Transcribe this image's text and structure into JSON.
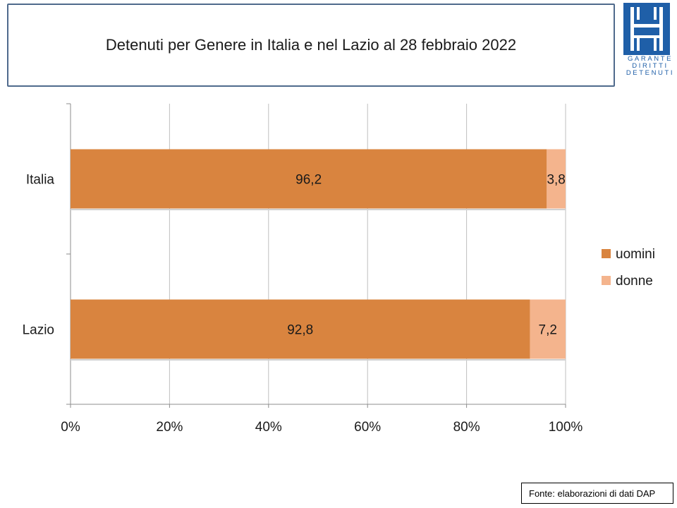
{
  "header": {
    "title": "Detenuti per Genere in Italia e nel Lazio al 28 febbraio 2022"
  },
  "logo": {
    "icon": "gdd-logo-icon",
    "lines": [
      "GARANTE",
      "DIRITTI",
      "DETENUTI"
    ],
    "color": "#1f5fa8"
  },
  "chart_data": {
    "type": "bar",
    "orientation": "horizontal",
    "stacked": "percent",
    "categories": [
      "Italia",
      "Lazio"
    ],
    "series": [
      {
        "name": "uomini",
        "values": [
          96.2,
          92.8
        ],
        "labels": [
          "96,2",
          "92,8"
        ],
        "color": "#d9843f"
      },
      {
        "name": "donne",
        "values": [
          3.8,
          7.2
        ],
        "labels": [
          "3,8",
          "7,2"
        ],
        "color": "#f4b48d"
      }
    ],
    "xlim": [
      0,
      100
    ],
    "x_ticks": [
      "0%",
      "20%",
      "40%",
      "60%",
      "80%",
      "100%"
    ],
    "grid": true,
    "legend_position": "right"
  },
  "footer": {
    "source": "Fonte: elaborazioni di dati DAP"
  }
}
